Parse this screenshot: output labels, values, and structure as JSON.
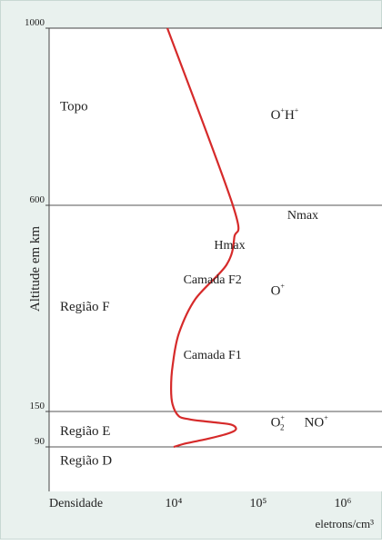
{
  "chart_data": {
    "type": "line",
    "xlabel": "eletrons/cm³",
    "xlabel_left": "Densidade",
    "ylabel": "Altitude em km",
    "x_ticks": [
      {
        "value": 10000,
        "label": "10⁴"
      },
      {
        "value": 100000,
        "label": "10⁵"
      },
      {
        "value": 1000000,
        "label": "10⁶"
      }
    ],
    "y_ticks": [
      {
        "value": 90,
        "label": "90"
      },
      {
        "value": 150,
        "label": "150"
      },
      {
        "value": 600,
        "label": "600"
      },
      {
        "value": 1000,
        "label": "1000"
      }
    ],
    "x_scale": "log",
    "grid_lines_at_altitude": [
      90,
      150,
      600
    ],
    "line_color": "#d62a2a",
    "series": [
      {
        "x": [
          10000,
          14000,
          24000,
          38000,
          52000,
          54000,
          47000,
          33000,
          21000,
          15000,
          11500,
          9700,
          9300,
          9700,
          11500,
          18000,
          42000,
          52000,
          50000,
          8400
        ],
        "y": [
          90,
          96,
          103,
          110,
          117,
          123,
          128,
          131,
          134,
          137,
          142,
          165,
          200,
          250,
          320,
          395,
          470,
          530,
          600,
          1000
        ]
      }
    ],
    "regions": [
      {
        "label": "Região D",
        "altitude": 60
      },
      {
        "label": "Região E",
        "altitude": 118
      },
      {
        "label": "Região F",
        "altitude": 380
      },
      {
        "label": "Topo",
        "altitude": 825
      }
    ],
    "annotations": [
      {
        "label": "Hmax",
        "x": 30000,
        "y": 505
      },
      {
        "label": "Camada F2",
        "x": 13000,
        "y": 430
      },
      {
        "label": "Camada F1",
        "x": 13000,
        "y": 265
      },
      {
        "label": "Nmax",
        "x": 220000,
        "y": 570
      }
    ],
    "ion_labels": [
      {
        "base": "O",
        "sup": "+",
        "sup2": "H",
        "sup3": "+",
        "kind": "OH",
        "x": 140000,
        "y": 795
      },
      {
        "base": "O",
        "sup": "+",
        "kind": "single",
        "x": 140000,
        "y": 405
      },
      {
        "base": "O",
        "sub": "2",
        "sup": "+",
        "kind": "O2",
        "x": 140000,
        "y": 125
      },
      {
        "base": "NO",
        "sup": "+",
        "kind": "single",
        "x": 350000,
        "y": 125
      }
    ]
  }
}
